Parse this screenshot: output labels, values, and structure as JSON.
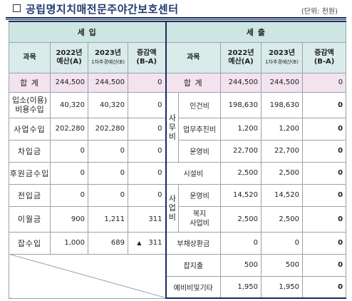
{
  "title": "공립명지치매전문주야간보호센터",
  "unit": "(단위: 천원)",
  "revenue": {
    "section": "세 입",
    "col_item": "과목",
    "col_2022": [
      "2022년",
      "예산(A)"
    ],
    "col_2023": [
      "2023년",
      "1차추경예산(B)"
    ],
    "col_diff": [
      "증감액",
      "(B-A)"
    ],
    "total": {
      "label": "합 계",
      "v2022": "244,500",
      "v2023": "244,500",
      "diff": "0"
    },
    "rows": [
      {
        "label": "입소(이용)\n비용수입",
        "v2022": "40,320",
        "v2023": "40,320",
        "diff": "0"
      },
      {
        "label": "사업수입",
        "v2022": "202,280",
        "v2023": "202,280",
        "diff": "0"
      },
      {
        "label": "차입금",
        "v2022": "0",
        "v2023": "0",
        "diff": "0"
      },
      {
        "label": "후원금수입",
        "v2022": "0",
        "v2023": "0",
        "diff": "0"
      },
      {
        "label": "전입금",
        "v2022": "0",
        "v2023": "0",
        "diff": "0"
      },
      {
        "label": "이월금",
        "v2022": "900",
        "v2023": "1,211",
        "diff": "311"
      },
      {
        "label": "잡수입",
        "v2022": "1,000",
        "v2023": "689",
        "diff": "311",
        "diff_mark": "▲"
      }
    ]
  },
  "expense": {
    "section": "세 출",
    "col_item": "과목",
    "col_2022": [
      "2022년",
      "예산(A)"
    ],
    "col_2023": [
      "2023년",
      "1차추경예산(B)"
    ],
    "col_diff": [
      "증감액",
      "(B-A)"
    ],
    "total": {
      "label": "합 계",
      "v2022": "244,500",
      "v2023": "244,500",
      "diff": "0"
    },
    "group_office": "사\n무\n비",
    "group_project": "사\n업\n비",
    "rows": {
      "personnel": {
        "label": "인건비",
        "v2022": "198,630",
        "v2023": "198,630",
        "diff": "0"
      },
      "business": {
        "label": "업무추진비",
        "v2022": "1,200",
        "v2023": "1,200",
        "diff": "0"
      },
      "operation": {
        "label": "운영비",
        "v2022": "22,700",
        "v2023": "22,700",
        "diff": "0"
      },
      "facility": {
        "label": "시설비",
        "v2022": "2,500",
        "v2023": "2,500",
        "diff": "0"
      },
      "proj_operation": {
        "label": "운영비",
        "v2022": "14,520",
        "v2023": "14,520",
        "diff": "0"
      },
      "welfare": {
        "label": "복지\n사업비",
        "v2022": "2,500",
        "v2023": "2,500",
        "diff": "0"
      },
      "debt": {
        "label": "부채상환금",
        "v2022": "0",
        "v2023": "0",
        "diff": "0"
      },
      "misc": {
        "label": "잡지출",
        "v2022": "500",
        "v2023": "500",
        "diff": "0"
      },
      "reserve": {
        "label": "예비비및기타",
        "v2022": "1,950",
        "v2023": "1,950",
        "diff": "0"
      }
    }
  }
}
